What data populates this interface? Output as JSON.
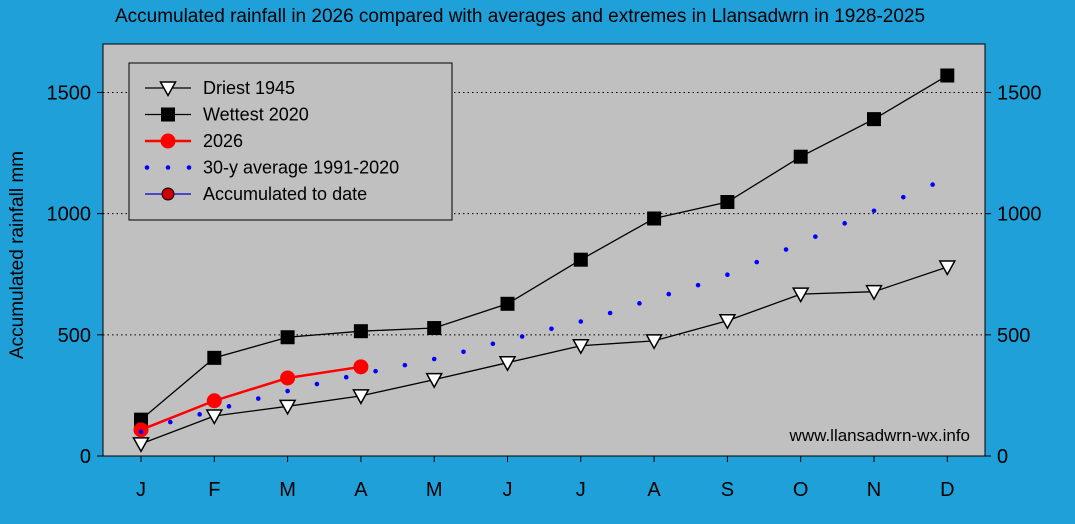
{
  "chart_data": {
    "type": "line",
    "title": "Accumulated rainfall in 2026 compared with averages and extremes in Llansadwrn in 1928-2025",
    "ylabel": "Accumulated rainfall mm",
    "xlabel": "",
    "categories": [
      "J",
      "F",
      "M",
      "A",
      "M",
      "J",
      "J",
      "A",
      "S",
      "O",
      "N",
      "D"
    ],
    "ylim": [
      0,
      1700
    ],
    "yticks": [
      0,
      500,
      1000,
      1500
    ],
    "grid": "horizontal dotted",
    "legend_position": "top-left",
    "credit": "www.llansadwrn-wx.info",
    "series": [
      {
        "name": "Driest 1945",
        "marker": "open-triangle-down",
        "color": "#000000",
        "x": [
          1,
          2,
          3,
          4,
          5,
          6,
          7,
          8,
          9,
          10,
          11,
          12
        ],
        "values": [
          50,
          165,
          205,
          248,
          315,
          385,
          455,
          475,
          558,
          668,
          678,
          780
        ]
      },
      {
        "name": "Wettest 2020",
        "marker": "filled-square",
        "color": "#000000",
        "x": [
          1,
          2,
          3,
          4,
          5,
          6,
          7,
          8,
          9,
          10,
          11,
          12
        ],
        "values": [
          150,
          405,
          490,
          515,
          528,
          628,
          810,
          980,
          1048,
          1235,
          1390,
          1570
        ]
      },
      {
        "name": "2026",
        "marker": "filled-circle",
        "color": "#ff0000",
        "x": [
          1,
          2,
          3,
          4
        ],
        "values": [
          108,
          228,
          322,
          368
        ]
      },
      {
        "name": "30-y average 1991-2020",
        "marker": "dots",
        "color": "#0000ff",
        "x": [
          1,
          1.4,
          1.8,
          2.2,
          2.6,
          3,
          3.4,
          3.8,
          4.2,
          4.6,
          5,
          5.4,
          5.8,
          6.2,
          6.6,
          7,
          7.4,
          7.8,
          8.2,
          8.6,
          9,
          9.4,
          9.8,
          10.2,
          10.6,
          11,
          11.4,
          11.8
        ],
        "values": [
          100,
          140,
          172,
          205,
          237,
          268,
          297,
          325,
          350,
          375,
          400,
          430,
          463,
          493,
          525,
          555,
          590,
          630,
          668,
          705,
          748,
          800,
          852,
          905,
          960,
          1012,
          1068,
          1120
        ]
      },
      {
        "name": "Accumulated to date",
        "marker": "filled-circle-blue-line",
        "color": "#0000cc",
        "x": [],
        "values": []
      }
    ]
  }
}
